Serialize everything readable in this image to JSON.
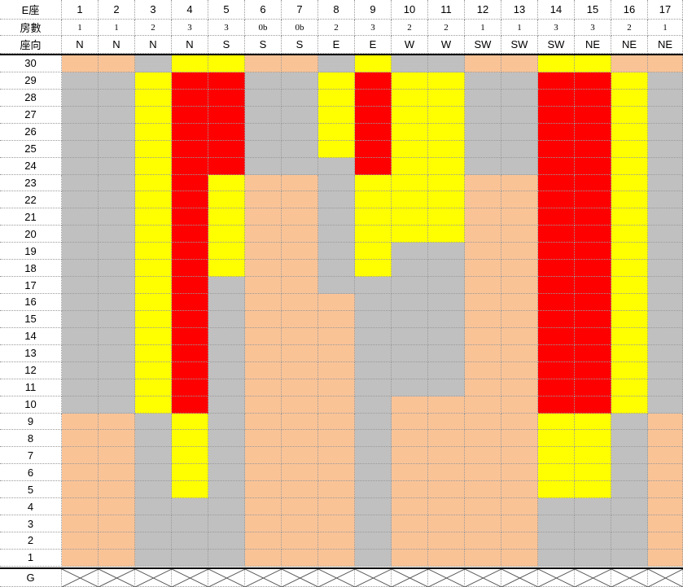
{
  "header": {
    "title": "E座",
    "units_label": "房數",
    "orientation_label": "座向",
    "units": [
      "1",
      "2",
      "3",
      "4",
      "5",
      "6",
      "7",
      "8",
      "9",
      "10",
      "11",
      "12",
      "13",
      "14",
      "15",
      "16",
      "17"
    ],
    "rooms": [
      "1",
      "1",
      "2",
      "3",
      "3",
      "0b",
      "0b",
      "2",
      "3",
      "2",
      "2",
      "1",
      "1",
      "3",
      "3",
      "2",
      "1"
    ],
    "orientations": [
      "N",
      "N",
      "N",
      "N",
      "S",
      "S",
      "S",
      "E",
      "E",
      "W",
      "W",
      "SW",
      "SW",
      "SW",
      "NE",
      "NE",
      "NE"
    ]
  },
  "floors": [
    "30",
    "29",
    "28",
    "27",
    "26",
    "25",
    "24",
    "23",
    "22",
    "21",
    "20",
    "19",
    "18",
    "17",
    "16",
    "15",
    "14",
    "13",
    "12",
    "11",
    "10",
    "9",
    "8",
    "7",
    "6",
    "5",
    "4",
    "3",
    "2",
    "1"
  ],
  "ground_label": "G",
  "legend_colors": {
    "P": "#fac396",
    "G": "#c0c0c0",
    "Y": "#ffff00",
    "R": "#ff0000"
  },
  "color_grid": [
    "PPGYYPPGYGGPPYYPP",
    "GGYRRGGYRYYGGRRYG",
    "GGYRRGGYRYYGGRRYG",
    "GGYRRGGYRYYGGRRYG",
    "GGYRRGGYRYYGGRRYG",
    "GGYRRGGYRYYGGRRYG",
    "GGYRRGGGRYYGGRRYG",
    "GGYRYPPGYYYPPRRYG",
    "GGYRYPPGYYYPPRRYG",
    "GGYRYPPGYYYPPRRYG",
    "GGYRYPPGYYYPPRRYG",
    "GGYRYPPGYGGPPRRYG",
    "GGYRYPPGYGGPPRRYG",
    "GGYRGPPGGGGPPRRYG",
    "GGYRGPPPGGGPPRRYG",
    "GGYRGPPPGGGPPRRYG",
    "GGYRGPPPGGGPPRRYG",
    "GGYRGPPPGGGPPRRYG",
    "GGYRGPPPGGGPPRRYG",
    "GGYRGPPPGGGPPRRYG",
    "GGYRGPPPGPPPPRRYG",
    "PPGYGPPPGPPPPYYGP",
    "PPGYGPPPGPPPPYYGP",
    "PPGYGPPPGPPPPYYGP",
    "PPGYGPPPGPPPPYYGP",
    "PPGYGPPPGPPPPYYGP",
    "PPGGGPPPGPPPPGGGP",
    "PPGGGPPPGPPPPGGGP",
    "PPGGGPPPGPPPPGGGP",
    "PPGGGPPPGPPPPGGGP"
  ]
}
